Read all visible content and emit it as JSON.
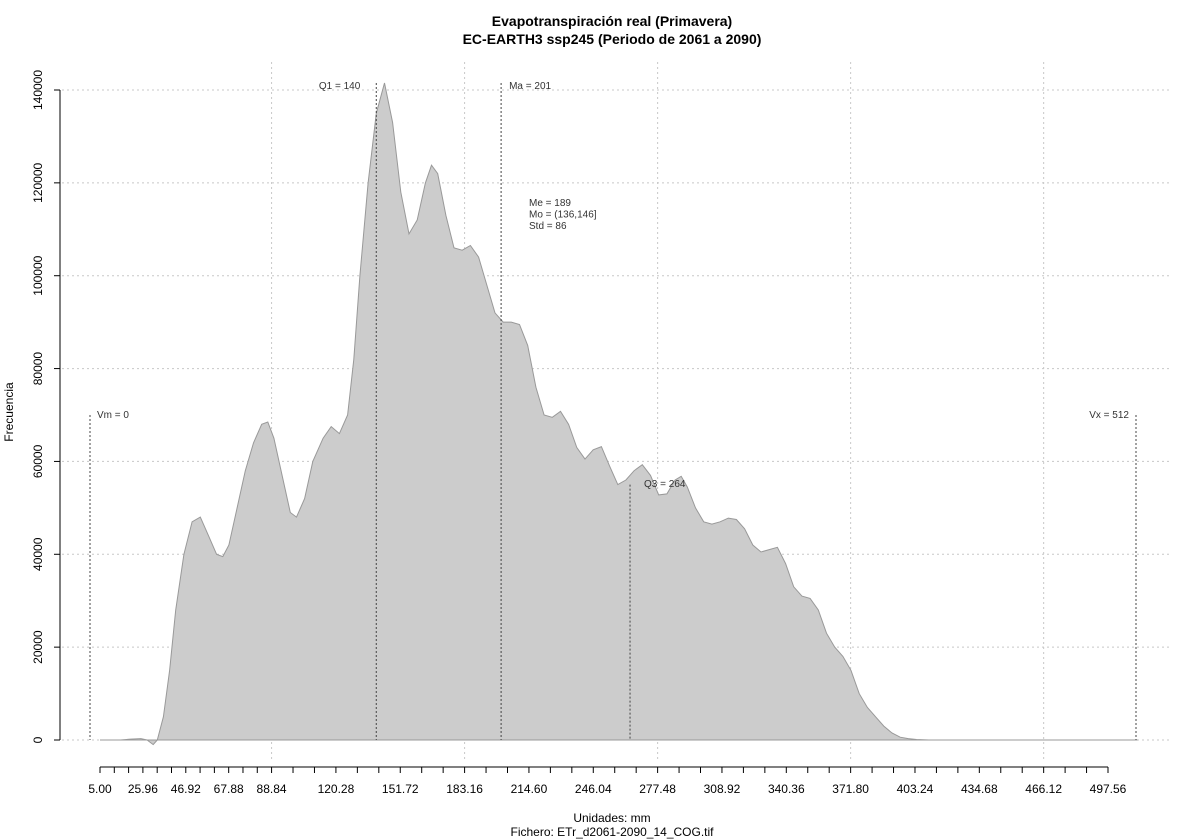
{
  "chart_data": {
    "type": "area",
    "title": "Evapotranspiración real (Primavera)",
    "subtitle": "EC-EARTH3 ssp245 (Periodo de 2061 a 2090)",
    "xlabel": "Unidades: mm",
    "file_label": "Fichero: ETr_d2061-2090_14_COG.tif",
    "ylabel": "Frecuencia",
    "xlim": [
      5.0,
      512
    ],
    "ylim": [
      0,
      140000
    ],
    "x_tick_labels": [
      "5.00",
      "25.96",
      "46.92",
      "67.88",
      "88.84",
      "120.28",
      "151.72",
      "183.16",
      "214.60",
      "246.04",
      "277.48",
      "308.92",
      "340.36",
      "371.80",
      "403.24",
      "434.68",
      "466.12",
      "497.56"
    ],
    "y_tick_labels": [
      "0",
      "20000",
      "40000",
      "60000",
      "80000",
      "100000",
      "120000",
      "140000"
    ],
    "grid": true,
    "series": [
      {
        "values": [
          [
            5,
            0
          ],
          [
            15,
            0
          ],
          [
            20,
            200
          ],
          [
            25,
            300
          ],
          [
            28,
            0
          ],
          [
            31,
            -1000
          ],
          [
            33,
            0
          ],
          [
            36,
            5000
          ],
          [
            39,
            15000
          ],
          [
            42,
            28000
          ],
          [
            46,
            40000
          ],
          [
            50,
            47000
          ],
          [
            54,
            48000
          ],
          [
            58,
            44000
          ],
          [
            62,
            40000
          ],
          [
            65,
            39500
          ],
          [
            68,
            42000
          ],
          [
            72,
            50000
          ],
          [
            76,
            58000
          ],
          [
            80,
            64000
          ],
          [
            84,
            68000
          ],
          [
            87,
            68500
          ],
          [
            90,
            65000
          ],
          [
            94,
            57000
          ],
          [
            98,
            49000
          ],
          [
            101,
            48000
          ],
          [
            105,
            52000
          ],
          [
            109,
            60000
          ],
          [
            114,
            65000
          ],
          [
            118,
            67500
          ],
          [
            122,
            66000
          ],
          [
            126,
            70000
          ],
          [
            129,
            82000
          ],
          [
            132,
            100000
          ],
          [
            136,
            120000
          ],
          [
            140,
            135000
          ],
          [
            144,
            141500
          ],
          [
            148,
            133000
          ],
          [
            152,
            118000
          ],
          [
            156,
            109000
          ],
          [
            160,
            112000
          ],
          [
            164,
            120000
          ],
          [
            167,
            123800
          ],
          [
            170,
            122000
          ],
          [
            174,
            113000
          ],
          [
            178,
            106000
          ],
          [
            182,
            105500
          ],
          [
            186,
            106500
          ],
          [
            190,
            104000
          ],
          [
            194,
            98000
          ],
          [
            198,
            92000
          ],
          [
            202,
            90000
          ],
          [
            206,
            90000
          ],
          [
            210,
            89500
          ],
          [
            214,
            85000
          ],
          [
            218,
            76000
          ],
          [
            222,
            70000
          ],
          [
            226,
            69500
          ],
          [
            230,
            70800
          ],
          [
            234,
            68000
          ],
          [
            238,
            63000
          ],
          [
            242,
            60500
          ],
          [
            246,
            62500
          ],
          [
            250,
            63200
          ],
          [
            254,
            59000
          ],
          [
            258,
            55000
          ],
          [
            262,
            56000
          ],
          [
            266,
            58000
          ],
          [
            270,
            59300
          ],
          [
            274,
            57000
          ],
          [
            278,
            52800
          ],
          [
            282,
            53000
          ],
          [
            286,
            56000
          ],
          [
            289,
            56800
          ],
          [
            292,
            54500
          ],
          [
            296,
            50000
          ],
          [
            300,
            47000
          ],
          [
            304,
            46500
          ],
          [
            308,
            47000
          ],
          [
            312,
            47800
          ],
          [
            316,
            47500
          ],
          [
            320,
            45500
          ],
          [
            324,
            42000
          ],
          [
            328,
            40500
          ],
          [
            332,
            41000
          ],
          [
            336,
            41500
          ],
          [
            340,
            38000
          ],
          [
            344,
            33000
          ],
          [
            348,
            31000
          ],
          [
            352,
            30500
          ],
          [
            356,
            28000
          ],
          [
            360,
            23000
          ],
          [
            364,
            20000
          ],
          [
            368,
            18000
          ],
          [
            372,
            15000
          ],
          [
            376,
            10000
          ],
          [
            380,
            7000
          ],
          [
            384,
            5000
          ],
          [
            388,
            3000
          ],
          [
            392,
            1500
          ],
          [
            396,
            600
          ],
          [
            400,
            300
          ],
          [
            404,
            100
          ],
          [
            410,
            0
          ],
          [
            512,
            0
          ]
        ]
      }
    ],
    "vlines": [
      {
        "label": "Vm = 0",
        "x": 0,
        "top": 70000
      },
      {
        "label": "Q1 = 140",
        "x": 140,
        "top": 141500
      },
      {
        "label": "Ma = 201",
        "x": 201,
        "top": 141500
      },
      {
        "label": "Q3 = 264",
        "x": 264,
        "top": 55000
      },
      {
        "label": "Vx = 512",
        "x": 512,
        "top": 70000
      }
    ],
    "stats": [
      "Me = 189",
      "Mo = (136,146]",
      "Std = 86"
    ],
    "colors": {
      "fill": "#cccccc",
      "stroke": "#999999",
      "grid": "#c8c8c8"
    }
  }
}
